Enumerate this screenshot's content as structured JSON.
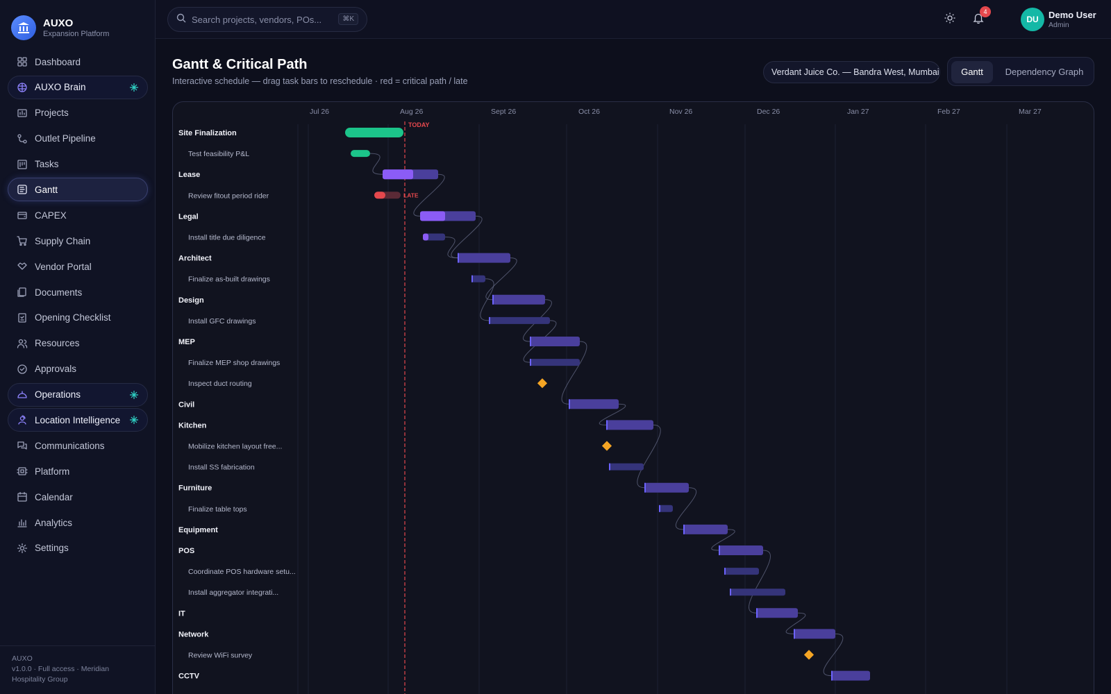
{
  "brand": {
    "name": "AUXO",
    "subtitle": "Expansion Platform"
  },
  "nav": [
    {
      "label": "Dashboard",
      "icon": "dashboard-icon",
      "active": false,
      "special": false
    },
    {
      "label": "AUXO Brain",
      "icon": "brain-icon",
      "active": false,
      "special": true
    },
    {
      "label": "Projects",
      "icon": "projects-icon",
      "active": false,
      "special": false
    },
    {
      "label": "Outlet Pipeline",
      "icon": "pipeline-icon",
      "active": false,
      "special": false
    },
    {
      "label": "Tasks",
      "icon": "tasks-icon",
      "active": false,
      "special": false
    },
    {
      "label": "Gantt",
      "icon": "gantt-icon",
      "active": true,
      "special": false
    },
    {
      "label": "CAPEX",
      "icon": "capex-icon",
      "active": false,
      "special": false
    },
    {
      "label": "Supply Chain",
      "icon": "cart-icon",
      "active": false,
      "special": false
    },
    {
      "label": "Vendor Portal",
      "icon": "handshake-icon",
      "active": false,
      "special": false
    },
    {
      "label": "Documents",
      "icon": "documents-icon",
      "active": false,
      "special": false
    },
    {
      "label": "Opening Checklist",
      "icon": "checklist-icon",
      "active": false,
      "special": false
    },
    {
      "label": "Resources",
      "icon": "users-icon",
      "active": false,
      "special": false
    },
    {
      "label": "Approvals",
      "icon": "check-circle-icon",
      "active": false,
      "special": false
    },
    {
      "label": "Operations",
      "icon": "operations-icon",
      "active": false,
      "special": true
    },
    {
      "label": "Location Intelligence",
      "icon": "location-icon",
      "active": false,
      "special": true
    },
    {
      "label": "Communications",
      "icon": "chat-icon",
      "active": false,
      "special": false
    },
    {
      "label": "Platform",
      "icon": "chip-icon",
      "active": false,
      "special": false
    },
    {
      "label": "Calendar",
      "icon": "calendar-icon",
      "active": false,
      "special": false
    },
    {
      "label": "Analytics",
      "icon": "analytics-icon",
      "active": false,
      "special": false
    },
    {
      "label": "Settings",
      "icon": "gear-icon",
      "active": false,
      "special": false
    }
  ],
  "footer": {
    "line1": "AUXO",
    "line2": "v1.0.0 · Full access · Meridian Hospitality Group"
  },
  "search": {
    "placeholder": "Search projects, vendors, POs...",
    "shortcut": "⌘K"
  },
  "notifications": {
    "count": "4"
  },
  "user": {
    "initials": "DU",
    "name": "Demo User",
    "role": "Admin"
  },
  "page": {
    "title": "Gantt & Critical Path",
    "subtitle": "Interactive schedule — drag task bars to reschedule · red = critical path / late",
    "project": "Verdant Juice Co. — Bandra West, Mumbai",
    "views": [
      "Gantt",
      "Dependency Graph"
    ]
  },
  "gantt": {
    "months": [
      "Jul 26",
      "Aug 26",
      "Sept 26",
      "Oct 26",
      "Nov 26",
      "Dec 26",
      "Jan 27",
      "Feb 27",
      "Mar 27"
    ],
    "today_label": "TODAY",
    "late_label": "LATE",
    "colors": {
      "done": "#1cc48a",
      "late": "#e5484d",
      "phase": "#4a3f9c",
      "phase_progress": "#8b5cf6",
      "task": "#35347a",
      "task_edge": "#6c63ff",
      "milestone": "#f5a524",
      "today": "#e5484d"
    },
    "rows": [
      {
        "label": "Site Finalization",
        "kind": "phase",
        "status": "done"
      },
      {
        "label": "Test feasibility P&L",
        "kind": "task",
        "status": "done"
      },
      {
        "label": "Lease",
        "kind": "phase",
        "status": "active"
      },
      {
        "label": "Review fitout period rider",
        "kind": "task",
        "status": "late"
      },
      {
        "label": "Legal",
        "kind": "phase",
        "status": "active"
      },
      {
        "label": "Install title due diligence",
        "kind": "task",
        "status": "planned"
      },
      {
        "label": "Architect",
        "kind": "phase",
        "status": "planned"
      },
      {
        "label": "Finalize as-built drawings",
        "kind": "task",
        "status": "planned"
      },
      {
        "label": "Design",
        "kind": "phase",
        "status": "planned"
      },
      {
        "label": "Install GFC drawings",
        "kind": "task",
        "status": "planned"
      },
      {
        "label": "MEP",
        "kind": "phase",
        "status": "planned"
      },
      {
        "label": "Finalize MEP shop drawings",
        "kind": "task",
        "status": "planned"
      },
      {
        "label": "Inspect duct routing",
        "kind": "milestone",
        "status": "planned"
      },
      {
        "label": "Civil",
        "kind": "phase",
        "status": "planned"
      },
      {
        "label": "Kitchen",
        "kind": "phase",
        "status": "planned"
      },
      {
        "label": "Mobilize kitchen layout free...",
        "kind": "milestone",
        "status": "planned"
      },
      {
        "label": "Install SS fabrication",
        "kind": "task",
        "status": "planned"
      },
      {
        "label": "Furniture",
        "kind": "phase",
        "status": "planned"
      },
      {
        "label": "Finalize table tops",
        "kind": "task",
        "status": "planned"
      },
      {
        "label": "Equipment",
        "kind": "phase",
        "status": "planned"
      },
      {
        "label": "POS",
        "kind": "phase",
        "status": "planned"
      },
      {
        "label": "Coordinate POS hardware setu...",
        "kind": "task",
        "status": "planned"
      },
      {
        "label": "Install aggregator integrati...",
        "kind": "task",
        "status": "planned"
      },
      {
        "label": "IT",
        "kind": "phase",
        "status": "planned"
      },
      {
        "label": "Network",
        "kind": "phase",
        "status": "planned"
      },
      {
        "label": "Review WiFi survey",
        "kind": "milestone",
        "status": "planned"
      },
      {
        "label": "CCTV",
        "kind": "phase",
        "status": "planned"
      }
    ]
  }
}
